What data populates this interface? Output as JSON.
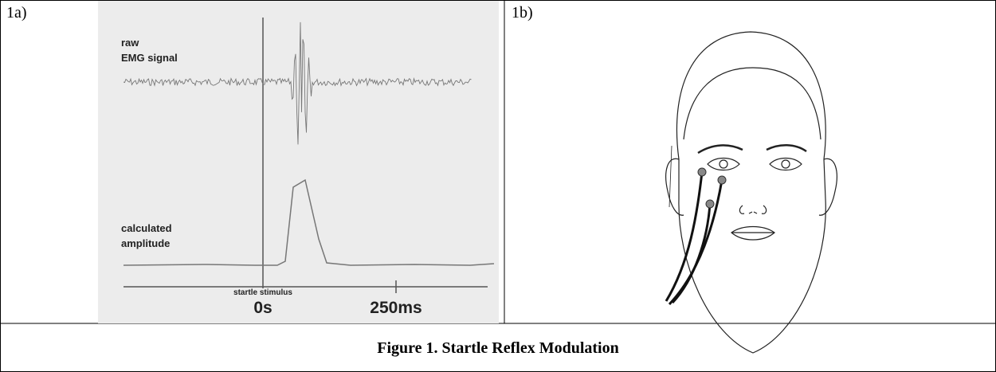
{
  "panel_a": {
    "label": "1a)",
    "signal_label_1": "raw",
    "signal_label_2": "EMG signal",
    "amplitude_label_1": "calculated",
    "amplitude_label_2": "amplitude",
    "stimulus_label": "startle stimulus",
    "tick_0": "0s",
    "tick_1": "250ms"
  },
  "panel_b": {
    "label": "1b)"
  },
  "caption": "Figure 1.  Startle Reflex Modulation"
}
